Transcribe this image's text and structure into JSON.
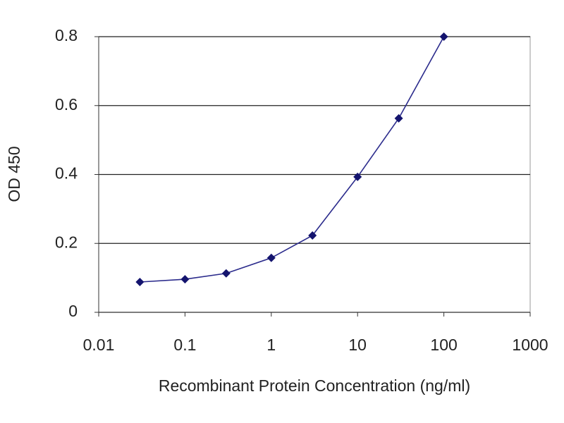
{
  "chart_data": {
    "type": "line",
    "x_label": "Recombinant Protein Concentration (ng/ml)",
    "y_label": "OD 450",
    "x": [
      0.03,
      0.1,
      0.3,
      1,
      3,
      10,
      30,
      100
    ],
    "series": [
      {
        "color": "#2b2b8c",
        "values": [
          0.088,
          0.096,
          0.113,
          0.158,
          0.223,
          0.393,
          0.563,
          0.8
        ]
      }
    ],
    "xscale": "log",
    "xlim": [
      0.01,
      1000
    ],
    "xticks": [
      0.01,
      0.1,
      1,
      10,
      100,
      1000
    ],
    "ylim": [
      0,
      0.8
    ],
    "yticks": [
      0,
      0.2,
      0.4,
      0.6,
      0.8
    ],
    "grid": true
  }
}
